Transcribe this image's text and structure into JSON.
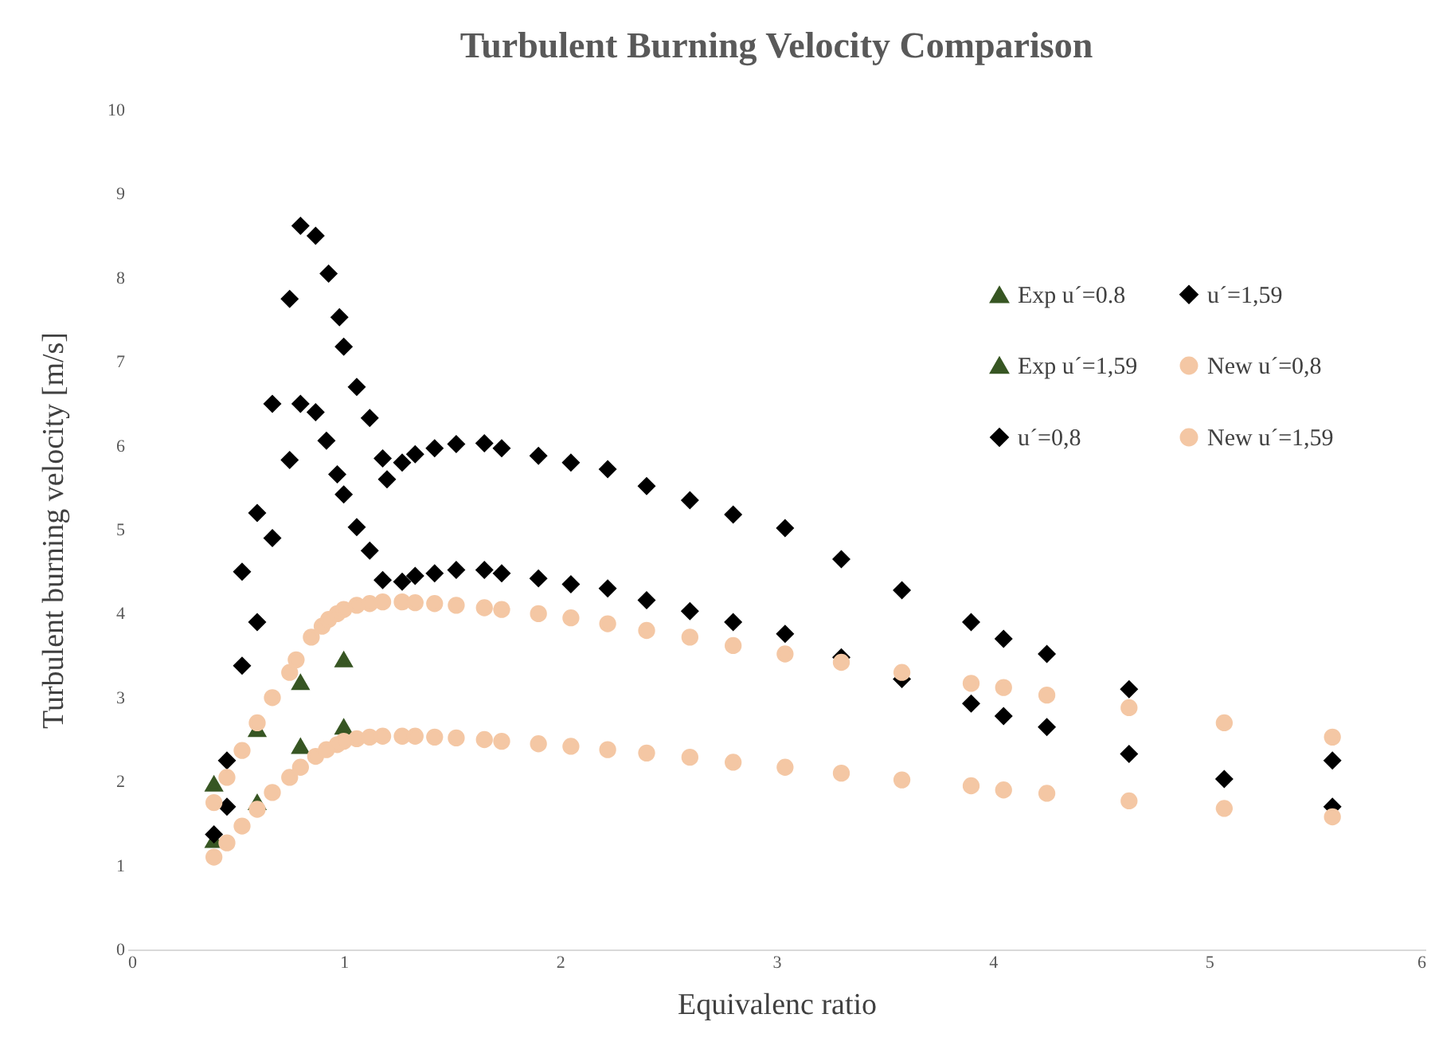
{
  "chart_data": {
    "type": "scatter",
    "title": "Turbulent Burning Velocity Comparison",
    "xlabel": "Equivalenc ratio",
    "ylabel": "Turbulent burning velocity [m/s]",
    "xlim": [
      0,
      6
    ],
    "xticks": [
      0,
      1,
      2,
      3,
      4,
      5,
      6
    ],
    "ylim": [
      0,
      10
    ],
    "yticks": [
      0,
      1,
      2,
      3,
      4,
      5,
      6,
      7,
      8,
      9,
      10
    ],
    "grid": false,
    "legend": "top right",
    "series": [
      {
        "name": "Exp u´=0.8",
        "color": "#375623",
        "marker": "triangle",
        "x": [
          0.4,
          0.6,
          0.8,
          1.0
        ],
        "values": [
          1.3,
          1.75,
          2.42,
          2.65
        ]
      },
      {
        "name": "Exp u´=1,59",
        "color": "#375623",
        "marker": "triangle",
        "x": [
          0.4,
          0.6,
          0.8,
          1.0
        ],
        "values": [
          1.97,
          2.62,
          3.18,
          3.45
        ]
      },
      {
        "name": "u´=0,8",
        "color": "#000000",
        "marker": "diamond",
        "x": [
          0.4,
          0.46,
          0.53,
          0.6,
          0.67,
          0.75,
          0.8,
          0.87,
          0.92,
          0.97,
          1.0,
          1.06,
          1.12,
          1.18,
          1.27,
          1.33,
          1.42,
          1.52,
          1.65,
          1.73,
          1.9,
          2.05,
          2.22,
          2.4,
          2.6,
          2.8,
          3.04,
          3.3,
          3.58,
          3.9,
          4.05,
          4.25,
          4.63,
          5.07,
          5.57
        ],
        "values": [
          1.37,
          1.7,
          3.38,
          3.9,
          4.9,
          5.83,
          6.5,
          6.4,
          6.06,
          5.66,
          5.42,
          5.03,
          4.75,
          4.4,
          4.38,
          4.45,
          4.48,
          4.52,
          4.52,
          4.48,
          4.42,
          4.35,
          4.3,
          4.16,
          4.03,
          3.9,
          3.76,
          3.48,
          3.22,
          2.93,
          2.78,
          2.65,
          2.33,
          2.03,
          1.7
        ]
      },
      {
        "name": "u´=1,59",
        "color": "#000000",
        "marker": "diamond",
        "x": [
          0.46,
          0.53,
          0.6,
          0.67,
          0.75,
          0.8,
          0.87,
          0.93,
          0.98,
          1.0,
          1.06,
          1.12,
          1.18,
          1.2,
          1.27,
          1.33,
          1.42,
          1.52,
          1.65,
          1.73,
          1.9,
          2.05,
          2.22,
          2.4,
          2.6,
          2.8,
          3.04,
          3.3,
          3.58,
          3.9,
          4.05,
          4.25,
          4.63,
          5.57
        ],
        "values": [
          2.25,
          4.5,
          5.2,
          6.5,
          7.75,
          8.62,
          8.5,
          8.05,
          7.53,
          7.18,
          6.7,
          6.33,
          5.85,
          5.6,
          5.8,
          5.9,
          5.97,
          6.02,
          6.03,
          5.97,
          5.88,
          5.8,
          5.72,
          5.52,
          5.35,
          5.18,
          5.02,
          4.65,
          4.28,
          3.9,
          3.7,
          3.52,
          3.1,
          2.25
        ]
      },
      {
        "name": "New u´=0,8",
        "color": "#f4c7a4",
        "marker": "circle",
        "x": [
          0.4,
          0.46,
          0.53,
          0.6,
          0.67,
          0.75,
          0.8,
          0.87,
          0.92,
          0.97,
          1.0,
          1.06,
          1.12,
          1.18,
          1.27,
          1.33,
          1.42,
          1.52,
          1.65,
          1.73,
          1.9,
          2.05,
          2.22,
          2.4,
          2.6,
          2.8,
          3.04,
          3.3,
          3.58,
          3.9,
          4.05,
          4.25,
          4.63,
          5.07,
          5.57
        ],
        "values": [
          1.1,
          1.27,
          1.47,
          1.67,
          1.87,
          2.05,
          2.17,
          2.3,
          2.38,
          2.44,
          2.48,
          2.51,
          2.53,
          2.54,
          2.54,
          2.54,
          2.53,
          2.52,
          2.5,
          2.48,
          2.45,
          2.42,
          2.38,
          2.34,
          2.29,
          2.23,
          2.17,
          2.1,
          2.02,
          1.95,
          1.9,
          1.86,
          1.77,
          1.68,
          1.58
        ]
      },
      {
        "name": "New u´=1,59",
        "color": "#f4c7a4",
        "marker": "circle",
        "x": [
          0.4,
          0.46,
          0.53,
          0.6,
          0.67,
          0.75,
          0.78,
          0.85,
          0.9,
          0.93,
          0.97,
          1.0,
          1.06,
          1.12,
          1.18,
          1.27,
          1.33,
          1.42,
          1.52,
          1.65,
          1.73,
          1.9,
          2.05,
          2.22,
          2.4,
          2.6,
          2.8,
          3.04,
          3.3,
          3.58,
          3.9,
          4.05,
          4.25,
          4.63,
          5.07,
          5.57
        ],
        "values": [
          1.75,
          2.05,
          2.37,
          2.7,
          3.0,
          3.3,
          3.45,
          3.72,
          3.85,
          3.93,
          4.0,
          4.05,
          4.1,
          4.12,
          4.14,
          4.14,
          4.13,
          4.12,
          4.1,
          4.07,
          4.05,
          4.0,
          3.95,
          3.88,
          3.8,
          3.72,
          3.62,
          3.52,
          3.42,
          3.3,
          3.17,
          3.12,
          3.03,
          2.88,
          2.7,
          2.53
        ]
      }
    ]
  }
}
